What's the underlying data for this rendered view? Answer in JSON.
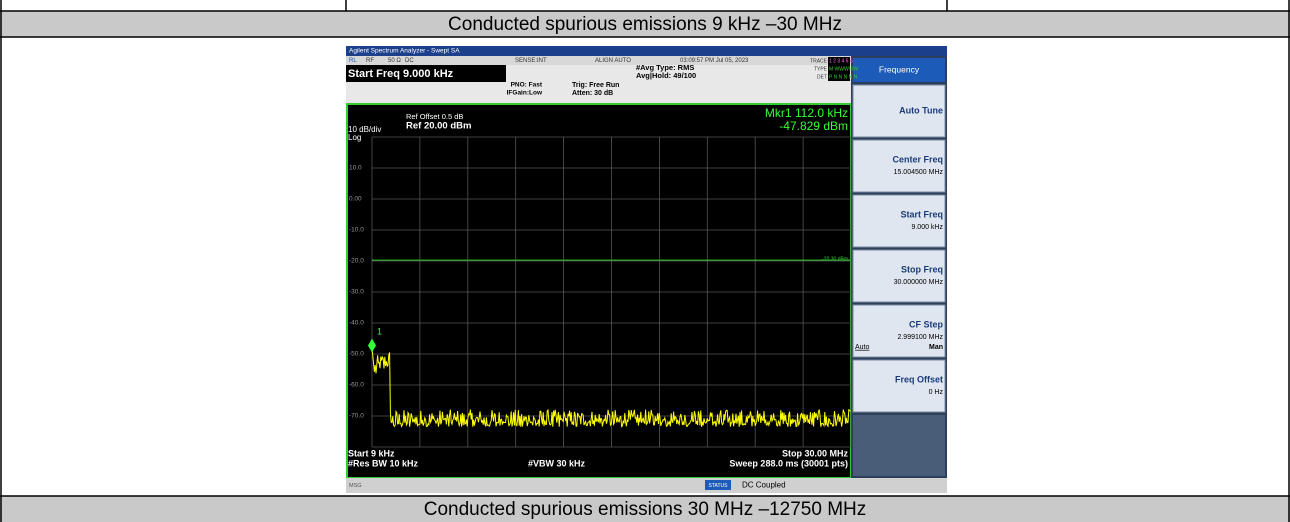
{
  "rows": [
    {
      "title": "Conducted spurious emissions 9 kHz –30 MHz"
    },
    {
      "title": "Conducted spurious emissions 30 MHz –12750 MHz"
    }
  ],
  "analyzer": {
    "title_bar": "Agilent Spectrum Analyzer - Swept SA",
    "status_line": [
      "RL",
      "RF",
      "50 Ω",
      "DC",
      "SENSE:INT",
      "ALIGN AUTO",
      "03:09:57 PM Jul 05, 2023"
    ],
    "start_freq": "Start Freq 9.000 kHz",
    "pno": "PNO: Fast",
    "ifgain": "IFGain:Low",
    "trig": "Trig: Free Run",
    "atten": "Atten: 30 dB",
    "avg_type": "#Avg Type: RMS",
    "avg_hold": "Avg|Hold: 49/100",
    "trace_labels": [
      "TRACE",
      "TYPE",
      "DET"
    ],
    "trace_values": [
      "1 2 3 4 5 6",
      "M WWWWW",
      "P N N N N N"
    ],
    "ref_offset": "Ref Offset 0.5 dB",
    "ref_level": "Ref 20.00 dBm",
    "scale": "10 dB/div",
    "scale_type": "Log",
    "marker_freq": "Mkr1 112.0 kHz",
    "marker_level": "-47.829 dBm",
    "marker_id": "1",
    "limit_label": "-20.30 dBm",
    "y_labels": [
      "10.0",
      "0.00",
      "-10.0",
      "-20.0",
      "-30.0",
      "-40.0",
      "-50.0",
      "-60.0",
      "-70.0"
    ],
    "start": "Start 9 kHz",
    "stop": "Stop 30.00 MHz",
    "rbw": "#Res BW 10 kHz",
    "vbw": "#VBW 30 kHz",
    "sweep": "Sweep  288.0 ms (30001 pts)",
    "menu_title": "Frequency",
    "softkeys": [
      {
        "label": "Auto Tune"
      },
      {
        "label": "Center Freq",
        "value": "15.004500 MHz"
      },
      {
        "label": "Start Freq",
        "value": "9.000 kHz"
      },
      {
        "label": "Stop Freq",
        "value": "30.000000 MHz"
      },
      {
        "label": "CF Step",
        "value": "2.999100 MHz",
        "options": [
          "Auto",
          "Man"
        ]
      },
      {
        "label": "Freq Offset",
        "value": "0 Hz"
      }
    ],
    "msg": "MSG",
    "status": "STATUS",
    "status_text": "DC Coupled"
  }
}
